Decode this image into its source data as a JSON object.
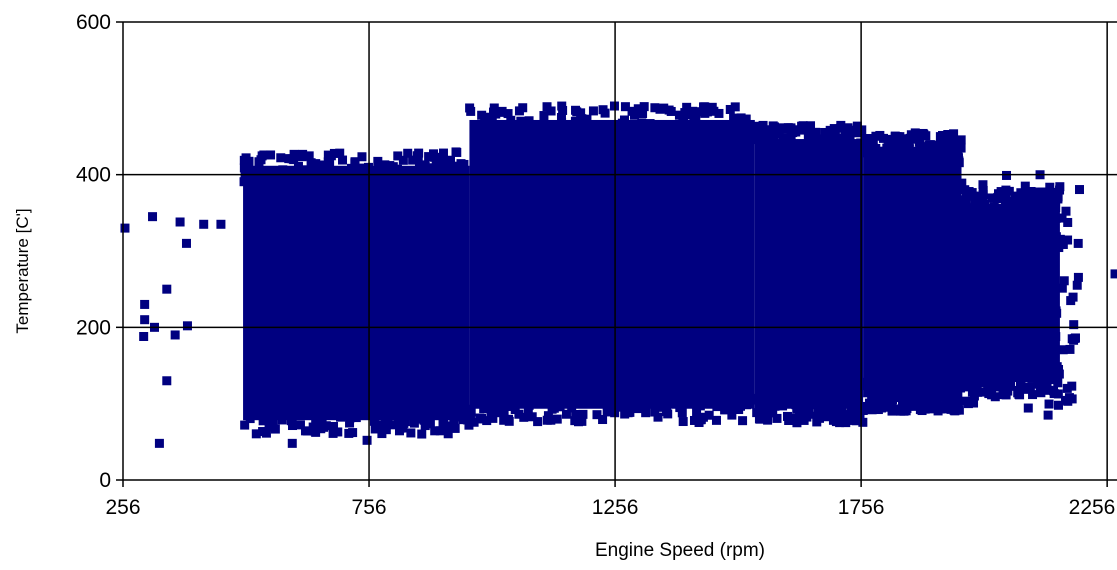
{
  "colors": {
    "point": "#000080",
    "axis": "#000000",
    "grid": "#000000",
    "background": "#ffffff"
  },
  "chart_data": {
    "type": "scatter",
    "title": "",
    "xlabel": "Engine Speed (rpm)",
    "ylabel": "Temperature [C']",
    "xlim": [
      256,
      2276
    ],
    "ylim": [
      0,
      600
    ],
    "x_ticks": [
      256,
      756,
      1256,
      1756,
      2256
    ],
    "y_ticks": [
      0,
      200,
      400,
      600
    ],
    "grid": true,
    "legend": "none",
    "marker": "square",
    "dense_regions": [
      {
        "x": [
          500,
          960
        ],
        "y": [
          60,
          430
        ]
      },
      {
        "x": [
          960,
          1540
        ],
        "y": [
          75,
          490
        ]
      },
      {
        "x": [
          1540,
          1760
        ],
        "y": [
          75,
          465
        ]
      },
      {
        "x": [
          1760,
          1960
        ],
        "y": [
          90,
          455
        ]
      },
      {
        "x": [
          1960,
          2160
        ],
        "y": [
          110,
          380
        ]
      }
    ],
    "outliers": [
      {
        "x": 260,
        "y": 330
      },
      {
        "x": 316,
        "y": 345
      },
      {
        "x": 300,
        "y": 230
      },
      {
        "x": 300,
        "y": 210
      },
      {
        "x": 298,
        "y": 188
      },
      {
        "x": 320,
        "y": 200
      },
      {
        "x": 330,
        "y": 48
      },
      {
        "x": 345,
        "y": 250
      },
      {
        "x": 345,
        "y": 130
      },
      {
        "x": 362,
        "y": 190
      },
      {
        "x": 372,
        "y": 338
      },
      {
        "x": 385,
        "y": 310
      },
      {
        "x": 387,
        "y": 202
      },
      {
        "x": 420,
        "y": 335
      },
      {
        "x": 455,
        "y": 335
      },
      {
        "x": 600,
        "y": 48
      },
      {
        "x": 752,
        "y": 52
      },
      {
        "x": 2136,
        "y": 85
      },
      {
        "x": 2185,
        "y": 185
      },
      {
        "x": 2272,
        "y": 270
      }
    ]
  }
}
